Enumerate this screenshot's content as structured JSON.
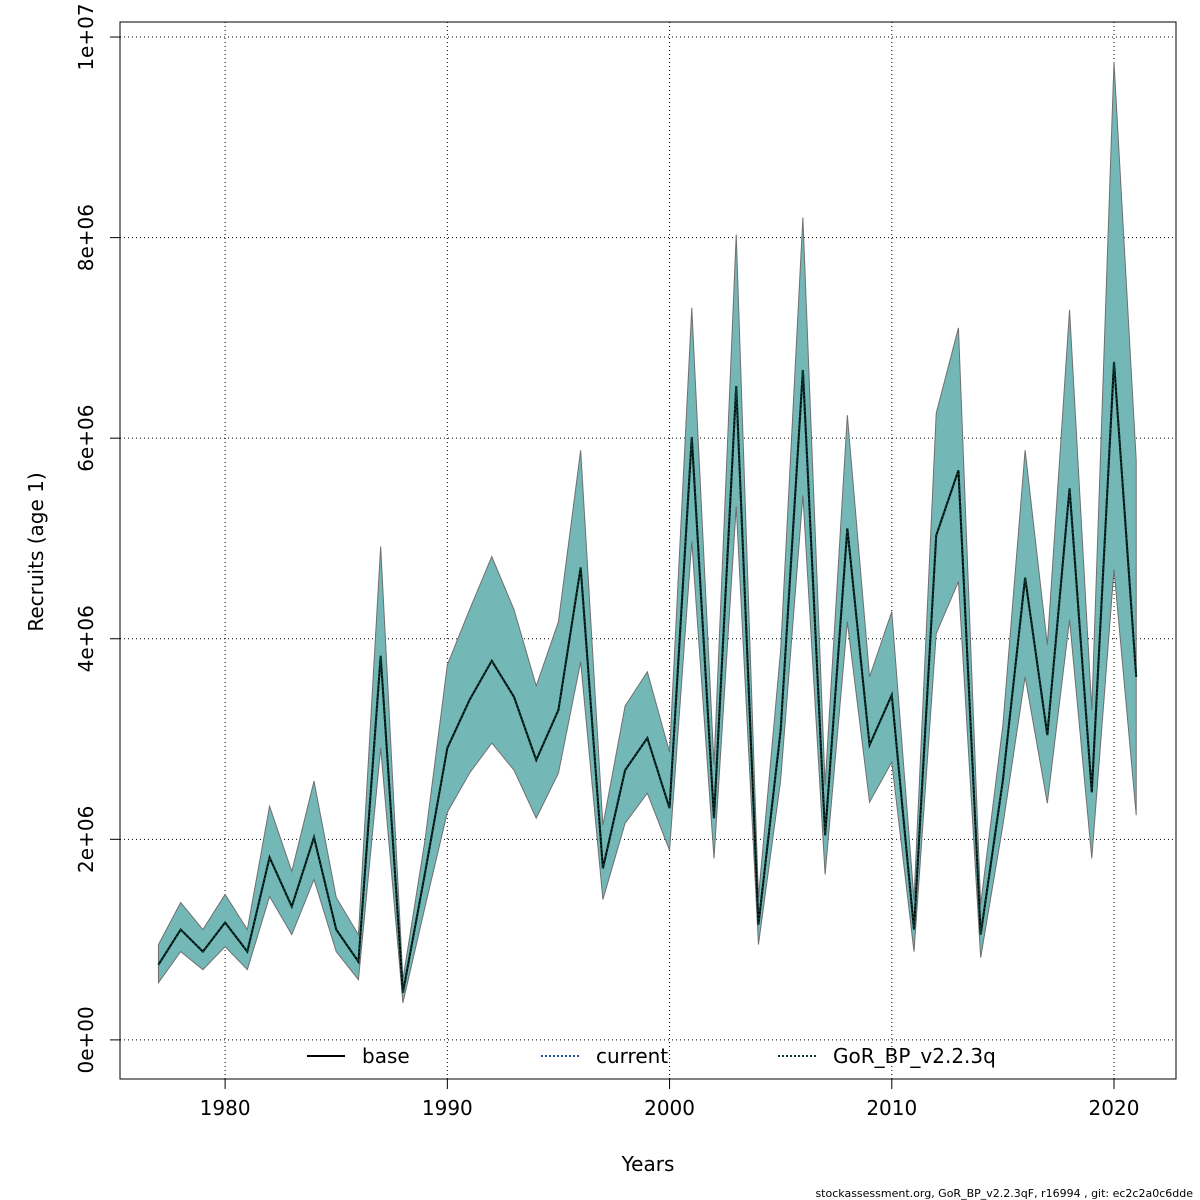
{
  "chart_data": {
    "type": "line",
    "x_label": "Years",
    "y_label": "Recruits (age 1)",
    "footer": "stockassessment.org, GoR_BP_v2.2.3qF, r16994 , git: ec2c2a0c6dde",
    "x": [
      1977,
      1978,
      1979,
      1980,
      1981,
      1982,
      1983,
      1984,
      1985,
      1986,
      1987,
      1988,
      1989,
      1990,
      1991,
      1992,
      1993,
      1994,
      1995,
      1996,
      1997,
      1998,
      1999,
      2000,
      2001,
      2002,
      2003,
      2004,
      2005,
      2006,
      2007,
      2008,
      2009,
      2010,
      2011,
      2012,
      2013,
      2014,
      2015,
      2016,
      2017,
      2018,
      2019,
      2020,
      2021
    ],
    "series": [
      {
        "name": "base",
        "color": "#000000",
        "dash": "solid",
        "values": [
          750000,
          1100000,
          880000,
          1170000,
          880000,
          1820000,
          1330000,
          2020000,
          1100000,
          780000,
          3830000,
          470000,
          1670000,
          2910000,
          3390000,
          3780000,
          3420000,
          2790000,
          3290000,
          4710000,
          1710000,
          2690000,
          3010000,
          2310000,
          6010000,
          2210000,
          6520000,
          1150000,
          3090000,
          6680000,
          2040000,
          5100000,
          2940000,
          3440000,
          1100000,
          5030000,
          5680000,
          1050000,
          2590000,
          4610000,
          3040000,
          5500000,
          2470000,
          6760000,
          3620000
        ]
      },
      {
        "name": "current",
        "color": "#1f5f9f",
        "dash": "dotted",
        "values": [
          750000,
          1100000,
          880000,
          1170000,
          880000,
          1820000,
          1330000,
          2020000,
          1100000,
          780000,
          3830000,
          470000,
          1670000,
          2910000,
          3390000,
          3780000,
          3420000,
          2790000,
          3290000,
          4710000,
          1710000,
          2690000,
          3010000,
          2310000,
          6010000,
          2210000,
          6520000,
          1150000,
          3090000,
          6680000,
          2040000,
          5100000,
          2940000,
          3440000,
          1100000,
          5030000,
          5680000,
          1050000,
          2590000,
          4610000,
          3040000,
          5500000,
          2470000,
          6760000,
          3620000
        ]
      },
      {
        "name": "GoR_BP_v2.2.3q",
        "color": "#0a3b2a",
        "dash": "dotted",
        "band_color": "#74b7b7",
        "values": [
          750000,
          1100000,
          880000,
          1170000,
          880000,
          1820000,
          1330000,
          2020000,
          1100000,
          780000,
          3830000,
          470000,
          1670000,
          2910000,
          3390000,
          3780000,
          3420000,
          2790000,
          3290000,
          4710000,
          1710000,
          2690000,
          3010000,
          2310000,
          6010000,
          2210000,
          6520000,
          1150000,
          3090000,
          6680000,
          2040000,
          5100000,
          2940000,
          3440000,
          1100000,
          5030000,
          5680000,
          1050000,
          2590000,
          4610000,
          3040000,
          5500000,
          2470000,
          6760000,
          3620000
        ],
        "lower": [
          570000,
          880000,
          700000,
          930000,
          700000,
          1430000,
          1050000,
          1600000,
          880000,
          600000,
          2910000,
          370000,
          1330000,
          2270000,
          2660000,
          2960000,
          2690000,
          2210000,
          2660000,
          3770000,
          1400000,
          2160000,
          2460000,
          1890000,
          4970000,
          1810000,
          5320000,
          950000,
          2590000,
          5430000,
          1650000,
          4170000,
          2370000,
          2770000,
          880000,
          4050000,
          4570000,
          820000,
          2140000,
          3620000,
          2360000,
          4190000,
          1810000,
          4690000,
          2240000
        ],
        "upper": [
          950000,
          1370000,
          1100000,
          1450000,
          1100000,
          2330000,
          1680000,
          2580000,
          1420000,
          1050000,
          4920000,
          600000,
          2000000,
          3740000,
          4290000,
          4820000,
          4290000,
          3530000,
          4170000,
          5880000,
          2140000,
          3330000,
          3670000,
          2870000,
          7300000,
          2740000,
          8030000,
          1420000,
          3890000,
          8200000,
          2540000,
          6230000,
          3620000,
          4270000,
          1400000,
          6250000,
          7100000,
          1350000,
          3140000,
          5880000,
          3940000,
          7280000,
          3290000,
          9750000,
          5780000
        ]
      }
    ],
    "xlim": [
      1975.27,
      2022.79
    ],
    "ylim": [
      -390000,
      10150000
    ],
    "xticks": [
      1980,
      1990,
      2000,
      2010,
      2020
    ],
    "yticks": [
      {
        "value": 0,
        "label": "0e+00"
      },
      {
        "value": 2000000,
        "label": "2e+06"
      },
      {
        "value": 4000000,
        "label": "4e+06"
      },
      {
        "value": 6000000,
        "label": "6e+06"
      },
      {
        "value": 8000000,
        "label": "8e+06"
      },
      {
        "value": 10000000,
        "label": "1e+07"
      }
    ],
    "grid": true,
    "legend": "bottom"
  }
}
